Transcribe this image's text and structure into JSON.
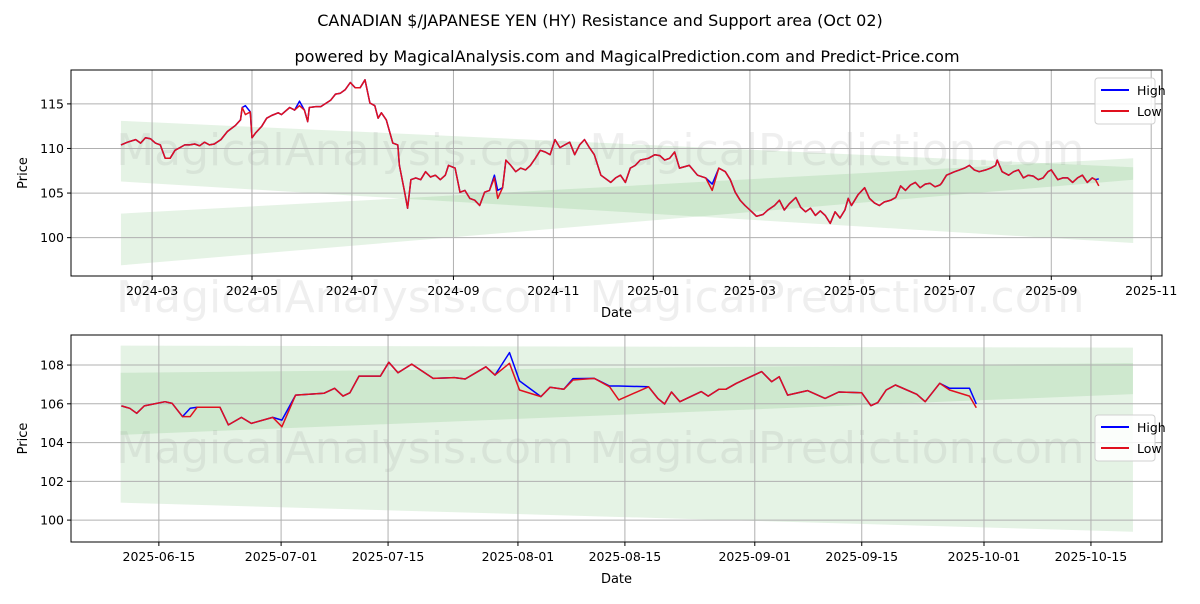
{
  "title": "CANADIAN $/JAPANESE YEN (HY) Resistance and Support area (Oct 02)",
  "subtitle": "powered by MagicalAnalysis.com and MagicalPrediction.com and Predict-Price.com",
  "watermarks": [
    "MagicalAnalysis.com",
    "MagicalPrediction.com"
  ],
  "colors": {
    "high": "#0000ff",
    "low": "#e0101e",
    "band": "#2ca02c"
  },
  "chart_data": [
    {
      "type": "line",
      "xlabel": "Date",
      "ylabel": "Price",
      "x_unit": "days since 2024-03-01",
      "xlim": [
        -49.5,
        616.6
      ],
      "ylim": [
        95.7,
        118.8
      ],
      "grid": true,
      "legend": {
        "placement": "top-right",
        "entries": [
          "High",
          "Low"
        ]
      },
      "yticks": [
        100,
        105,
        110,
        115
      ],
      "xticks": [
        {
          "d": 0,
          "label": "2024-03"
        },
        {
          "d": 61,
          "label": "2024-05"
        },
        {
          "d": 122,
          "label": "2024-07"
        },
        {
          "d": 184,
          "label": "2024-09"
        },
        {
          "d": 245,
          "label": "2024-11"
        },
        {
          "d": 306,
          "label": "2025-01"
        },
        {
          "d": 365,
          "label": "2025-03"
        },
        {
          "d": 426,
          "label": "2025-05"
        },
        {
          "d": 487,
          "label": "2025-07"
        },
        {
          "d": 549,
          "label": "2025-09"
        },
        {
          "d": 610,
          "label": "2025-11"
        }
      ],
      "bands": [
        {
          "x": [
            -19,
            599
          ],
          "lower": [
            106.3,
            99.4
          ],
          "upper": [
            113.1,
            107.9
          ]
        },
        {
          "x": [
            -19,
            599
          ],
          "lower": [
            96.9,
            106.5
          ],
          "upper": [
            102.7,
            108.9
          ]
        }
      ],
      "low": [
        [
          -19,
          110.4
        ],
        [
          -15,
          110.7
        ],
        [
          -10,
          111.0
        ],
        [
          -7,
          110.6
        ],
        [
          -4,
          111.2
        ],
        [
          -1,
          111.1
        ],
        [
          2,
          110.6
        ],
        [
          5,
          110.4
        ],
        [
          8,
          108.9
        ],
        [
          11,
          108.9
        ],
        [
          14,
          109.8
        ],
        [
          17,
          110.1
        ],
        [
          20,
          110.4
        ],
        [
          23,
          110.4
        ],
        [
          26,
          110.5
        ],
        [
          29,
          110.3
        ],
        [
          32,
          110.7
        ],
        [
          35,
          110.4
        ],
        [
          38,
          110.5
        ],
        [
          42,
          111.0
        ],
        [
          46,
          111.9
        ],
        [
          51,
          112.6
        ],
        [
          54,
          113.2
        ],
        [
          55,
          114.6
        ],
        [
          57,
          113.8
        ],
        [
          60,
          114.1
        ],
        [
          61,
          111.2
        ],
        [
          63,
          111.7
        ],
        [
          67,
          112.5
        ],
        [
          70,
          113.4
        ],
        [
          73,
          113.7
        ],
        [
          77,
          114.0
        ],
        [
          79,
          113.8
        ],
        [
          84,
          114.6
        ],
        [
          87,
          114.3
        ],
        [
          90,
          114.8
        ],
        [
          93,
          114.3
        ],
        [
          95,
          113.0
        ],
        [
          96,
          114.6
        ],
        [
          100,
          114.7
        ],
        [
          103,
          114.7
        ],
        [
          109,
          115.4
        ],
        [
          112,
          116.1
        ],
        [
          115,
          116.2
        ],
        [
          118,
          116.6
        ],
        [
          121,
          117.4
        ],
        [
          124,
          116.8
        ],
        [
          127,
          116.8
        ],
        [
          130,
          117.7
        ],
        [
          133,
          115.1
        ],
        [
          136,
          114.8
        ],
        [
          138,
          113.4
        ],
        [
          140,
          114.0
        ],
        [
          143,
          113.2
        ],
        [
          147,
          110.6
        ],
        [
          150,
          110.4
        ],
        [
          151,
          108.1
        ],
        [
          154,
          105.3
        ],
        [
          156,
          103.3
        ],
        [
          158,
          106.5
        ],
        [
          161,
          106.7
        ],
        [
          164,
          106.5
        ],
        [
          167,
          107.4
        ],
        [
          170,
          106.8
        ],
        [
          173,
          107.0
        ],
        [
          176,
          106.5
        ],
        [
          179,
          107.0
        ],
        [
          181,
          108.1
        ],
        [
          185,
          107.8
        ],
        [
          188,
          105.1
        ],
        [
          191,
          105.3
        ],
        [
          194,
          104.4
        ],
        [
          197,
          104.2
        ],
        [
          200,
          103.6
        ],
        [
          203,
          105.1
        ],
        [
          206,
          105.3
        ],
        [
          209,
          106.7
        ],
        [
          211,
          104.4
        ],
        [
          214,
          105.6
        ],
        [
          216,
          108.7
        ],
        [
          219,
          108.1
        ],
        [
          222,
          107.4
        ],
        [
          225,
          107.8
        ],
        [
          228,
          107.6
        ],
        [
          231,
          108.1
        ],
        [
          234,
          108.9
        ],
        [
          237,
          109.8
        ],
        [
          240,
          109.6
        ],
        [
          243,
          109.3
        ],
        [
          246,
          111.0
        ],
        [
          249,
          110.1
        ],
        [
          252,
          110.4
        ],
        [
          255,
          110.7
        ],
        [
          258,
          109.3
        ],
        [
          261,
          110.4
        ],
        [
          264,
          111.0
        ],
        [
          267,
          110.1
        ],
        [
          270,
          109.3
        ],
        [
          274,
          107.0
        ],
        [
          280,
          106.2
        ],
        [
          283,
          106.7
        ],
        [
          286,
          107.0
        ],
        [
          289,
          106.2
        ],
        [
          292,
          107.8
        ],
        [
          295,
          108.1
        ],
        [
          298,
          108.7
        ],
        [
          303,
          108.9
        ],
        [
          307,
          109.3
        ],
        [
          310,
          109.2
        ],
        [
          313,
          108.7
        ],
        [
          316,
          108.9
        ],
        [
          319,
          109.6
        ],
        [
          322,
          107.8
        ],
        [
          328,
          108.1
        ],
        [
          333,
          107.0
        ],
        [
          338,
          106.7
        ],
        [
          342,
          105.3
        ],
        [
          346,
          107.8
        ],
        [
          350,
          107.4
        ],
        [
          353,
          106.5
        ],
        [
          356,
          105.1
        ],
        [
          359,
          104.2
        ],
        [
          362,
          103.6
        ],
        [
          365,
          103.1
        ],
        [
          369,
          102.4
        ],
        [
          373,
          102.6
        ],
        [
          376,
          103.1
        ],
        [
          380,
          103.6
        ],
        [
          383,
          104.2
        ],
        [
          386,
          103.1
        ],
        [
          389,
          103.8
        ],
        [
          393,
          104.5
        ],
        [
          396,
          103.4
        ],
        [
          399,
          102.9
        ],
        [
          402,
          103.3
        ],
        [
          405,
          102.5
        ],
        [
          408,
          103.0
        ],
        [
          411,
          102.5
        ],
        [
          414,
          101.6
        ],
        [
          417,
          102.9
        ],
        [
          420,
          102.2
        ],
        [
          423,
          103.1
        ],
        [
          425,
          104.4
        ],
        [
          427,
          103.6
        ],
        [
          431,
          104.8
        ],
        [
          435,
          105.6
        ],
        [
          438,
          104.4
        ],
        [
          441,
          103.9
        ],
        [
          444,
          103.6
        ],
        [
          447,
          104.0
        ],
        [
          451,
          104.2
        ],
        [
          454,
          104.5
        ],
        [
          457,
          105.8
        ],
        [
          460,
          105.3
        ],
        [
          463,
          105.9
        ],
        [
          466,
          106.2
        ],
        [
          469,
          105.6
        ],
        [
          472,
          106.0
        ],
        [
          475,
          106.1
        ],
        [
          478,
          105.7
        ],
        [
          481,
          105.9
        ],
        [
          482,
          106.1
        ],
        [
          485,
          107.0
        ],
        [
          490,
          107.4
        ],
        [
          493,
          107.6
        ],
        [
          496,
          107.8
        ],
        [
          499,
          108.1
        ],
        [
          502,
          107.6
        ],
        [
          505,
          107.4
        ],
        [
          509,
          107.6
        ],
        [
          512,
          107.8
        ],
        [
          515,
          108.1
        ],
        [
          516,
          108.7
        ],
        [
          519,
          107.4
        ],
        [
          523,
          107.0
        ],
        [
          526,
          107.4
        ],
        [
          529,
          107.6
        ],
        [
          532,
          106.7
        ],
        [
          535,
          107.0
        ],
        [
          538,
          106.9
        ],
        [
          541,
          106.5
        ],
        [
          544,
          106.7
        ],
        [
          547,
          107.4
        ],
        [
          549,
          107.6
        ],
        [
          553,
          106.5
        ],
        [
          556,
          106.7
        ],
        [
          559,
          106.7
        ],
        [
          562,
          106.2
        ],
        [
          565,
          106.7
        ],
        [
          568,
          107.0
        ],
        [
          571,
          106.2
        ],
        [
          574,
          106.7
        ],
        [
          576,
          106.5
        ],
        [
          578,
          105.8
        ]
      ],
      "high_overrides": [
        [
          57,
          114.8
        ],
        [
          90,
          115.3
        ],
        [
          209,
          107.0
        ],
        [
          211,
          105.3
        ],
        [
          40,
          111.3
        ],
        [
          342,
          106.0
        ],
        [
          578,
          106.6
        ]
      ]
    },
    {
      "type": "line",
      "xlabel": "Date",
      "ylabel": "Price",
      "x_unit": "days since 2025-06-15",
      "xlim": [
        -11.5,
        131.3
      ],
      "ylim": [
        98.87,
        109.55
      ],
      "grid": true,
      "legend": {
        "placement": "center-right",
        "entries": [
          "High",
          "Low"
        ]
      },
      "yticks": [
        100,
        102,
        104,
        106,
        108
      ],
      "xticks": [
        {
          "d": 0,
          "label": "2025-06-15"
        },
        {
          "d": 16,
          "label": "2025-07-01"
        },
        {
          "d": 30,
          "label": "2025-07-15"
        },
        {
          "d": 47,
          "label": "2025-08-01"
        },
        {
          "d": 61,
          "label": "2025-08-15"
        },
        {
          "d": 78,
          "label": "2025-09-01"
        },
        {
          "d": 92,
          "label": "2025-09-15"
        },
        {
          "d": 108,
          "label": "2025-10-01"
        },
        {
          "d": 122,
          "label": "2025-10-15"
        }
      ],
      "bands": [
        {
          "x": [
            -5,
            127.5
          ],
          "lower": [
            100.9,
            99.4
          ],
          "upper": [
            107.6,
            108.1
          ]
        },
        {
          "x": [
            -5,
            127.5
          ],
          "lower": [
            104.4,
            106.5
          ],
          "upper": [
            109.0,
            108.9
          ]
        }
      ],
      "low": [
        [
          -4.9,
          105.89
        ],
        [
          -3.8,
          105.77
        ],
        [
          -2.9,
          105.51
        ],
        [
          -1.9,
          105.89
        ],
        [
          0.8,
          106.11
        ],
        [
          1.75,
          106.02
        ],
        [
          3.1,
          105.34
        ],
        [
          4.1,
          105.34
        ],
        [
          5.0,
          105.82
        ],
        [
          8.0,
          105.82
        ],
        [
          9.1,
          104.91
        ],
        [
          10.8,
          105.3
        ],
        [
          12.1,
          104.99
        ],
        [
          14.9,
          105.3
        ],
        [
          16.1,
          104.82
        ],
        [
          17.9,
          106.45
        ],
        [
          21.6,
          106.54
        ],
        [
          23.0,
          106.8
        ],
        [
          24.1,
          106.4
        ],
        [
          25.0,
          106.57
        ],
        [
          26.2,
          107.43
        ],
        [
          29.0,
          107.43
        ],
        [
          30.1,
          108.14
        ],
        [
          31.3,
          107.6
        ],
        [
          33.1,
          108.05
        ],
        [
          35.9,
          107.31
        ],
        [
          38.7,
          107.35
        ],
        [
          40.1,
          107.28
        ],
        [
          42.8,
          107.91
        ],
        [
          44.0,
          107.48
        ],
        [
          45.9,
          108.09
        ],
        [
          47.2,
          106.71
        ],
        [
          50.0,
          106.37
        ],
        [
          51.2,
          106.85
        ],
        [
          53.0,
          106.75
        ],
        [
          54.2,
          107.23
        ],
        [
          57.0,
          107.31
        ],
        [
          59.0,
          106.88
        ],
        [
          60.2,
          106.2
        ],
        [
          64.1,
          106.88
        ],
        [
          65.3,
          106.28
        ],
        [
          66.2,
          105.99
        ],
        [
          67.1,
          106.61
        ],
        [
          68.2,
          106.11
        ],
        [
          71.0,
          106.63
        ],
        [
          71.9,
          106.4
        ],
        [
          73.3,
          106.75
        ],
        [
          74.2,
          106.75
        ],
        [
          75.6,
          107.06
        ],
        [
          78.9,
          107.66
        ],
        [
          80.2,
          107.14
        ],
        [
          81.2,
          107.4
        ],
        [
          82.3,
          106.45
        ],
        [
          84.9,
          106.68
        ],
        [
          87.2,
          106.28
        ],
        [
          89.0,
          106.61
        ],
        [
          92.0,
          106.57
        ],
        [
          93.2,
          105.9
        ],
        [
          94.1,
          106.06
        ],
        [
          95.2,
          106.71
        ],
        [
          96.4,
          106.97
        ],
        [
          99.2,
          106.49
        ],
        [
          100.3,
          106.11
        ],
        [
          102.2,
          107.06
        ],
        [
          103.5,
          106.71
        ],
        [
          106.1,
          106.4
        ],
        [
          107.0,
          105.8
        ]
      ],
      "high_overrides": [
        [
          4.1,
          105.77
        ],
        [
          16.1,
          105.16
        ],
        [
          45.9,
          108.64
        ],
        [
          47.2,
          107.18
        ],
        [
          54.2,
          107.3
        ],
        [
          59.0,
          106.92
        ],
        [
          60.2,
          106.92
        ],
        [
          103.5,
          106.8
        ],
        [
          106.1,
          106.8
        ],
        [
          107.0,
          105.99
        ]
      ]
    }
  ]
}
